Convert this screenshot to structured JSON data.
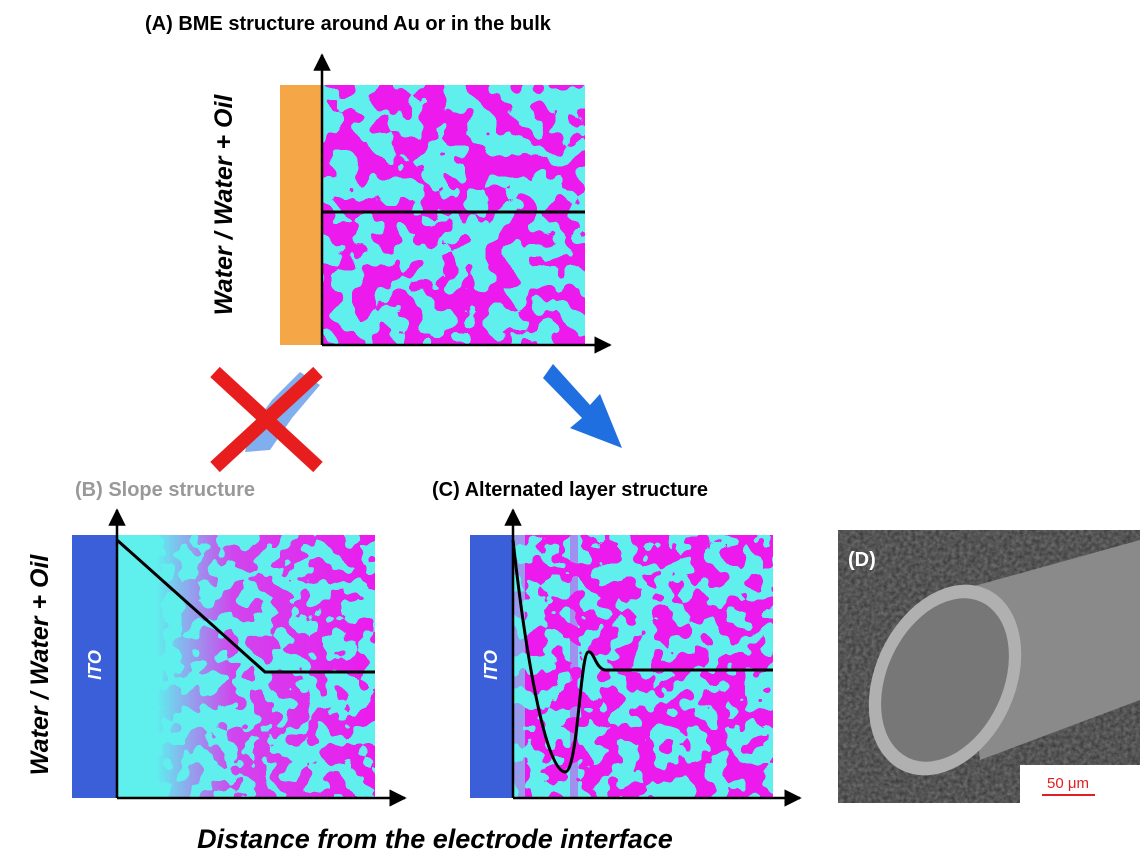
{
  "panels": {
    "a": {
      "title": "(A) BME structure around Au or in the bulk",
      "y_label": "Water / Water + Oil"
    },
    "b": {
      "title": "(B) Slope structure",
      "electrode": "ITO"
    },
    "c": {
      "title": "(C) Alternated layer structure",
      "electrode": "ITO"
    },
    "d": {
      "label": "(D)",
      "scale_bar": "50 μm"
    }
  },
  "y_label": "Water / Water + Oil",
  "x_label": "Distance from the electrode interface"
}
